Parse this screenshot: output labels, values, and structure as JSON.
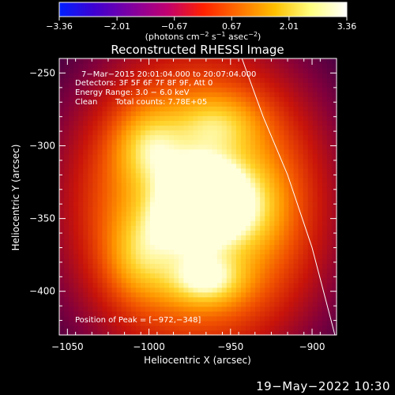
{
  "chart_data": {
    "type": "heatmap",
    "title": "Reconstructed RHESSI Image",
    "xlabel": "Heliocentric X (arcsec)",
    "ylabel": "Heliocentric Y (arcsec)",
    "xlim": [
      -1055,
      -885
    ],
    "ylim": [
      -430,
      -240
    ],
    "x_ticks": [
      -1050,
      -1000,
      -950,
      -900
    ],
    "x_tick_labels": [
      "−1050",
      "−1000",
      "−950",
      "−900"
    ],
    "y_ticks": [
      -400,
      -350,
      -300,
      -250
    ],
    "y_tick_labels": [
      "−400",
      "−350",
      "−300",
      "−250"
    ],
    "colorbar": {
      "ticks": [
        -3.36,
        -2.01,
        -0.67,
        0.67,
        2.01,
        3.36
      ],
      "tick_labels": [
        "−3.36",
        "−2.01",
        "−0.67",
        "0.67",
        "2.01",
        "3.36"
      ],
      "units_text": "(photons cm",
      "units_sup1": "−2",
      "units_mid": " s",
      "units_sup2": "−1",
      "units_mid2": " asec",
      "units_sup3": "−2",
      "units_end": ")",
      "colors": [
        "#0020ff",
        "#4000d0",
        "#8000a0",
        "#c00070",
        "#ff2000",
        "#ff7000",
        "#ffc000",
        "#ffff80",
        "#ffffff"
      ]
    },
    "annotations": {
      "line1": "7−Mar−2015 20:01:04.000 to 20:07:04.000",
      "line2": "Detectors: 3F 5F 6F 7F 8F 9F, Att 0",
      "line3": "Energy Range: 3.0 − 6.0 keV",
      "line4_a": "Clean",
      "line4_b": "Total counts: 7.78E+05",
      "peak": "Position of Peak = [−972,−348]"
    },
    "peak_position": [
      -972,
      -348
    ],
    "limb_points": [
      [
        -943,
        -240
      ],
      [
        -930,
        -280
      ],
      [
        -915,
        -320
      ],
      [
        -900,
        -370
      ],
      [
        -886,
        -430
      ]
    ],
    "sources": [
      {
        "x": -968,
        "y": -325,
        "amp": 0.55,
        "sx": 14,
        "sy": 12
      },
      {
        "x": -972,
        "y": -348,
        "amp": 0.65,
        "sx": 16,
        "sy": 14
      },
      {
        "x": -965,
        "y": -392,
        "amp": 0.45,
        "sx": 16,
        "sy": 12
      },
      {
        "x": -1000,
        "y": -300,
        "amp": 0.35,
        "sx": 14,
        "sy": 18
      },
      {
        "x": -1005,
        "y": -375,
        "amp": 0.3,
        "sx": 14,
        "sy": 20
      },
      {
        "x": -940,
        "y": -340,
        "amp": 0.3,
        "sx": 16,
        "sy": 20
      },
      {
        "x": -958,
        "y": -285,
        "amp": 0.3,
        "sx": 18,
        "sy": 14
      },
      {
        "x": -970,
        "y": -340,
        "amp": 1.0,
        "sx": 55,
        "sy": 75
      }
    ],
    "grid": false
  },
  "footer": {
    "timestamp": "19−May−2022 10:30"
  }
}
